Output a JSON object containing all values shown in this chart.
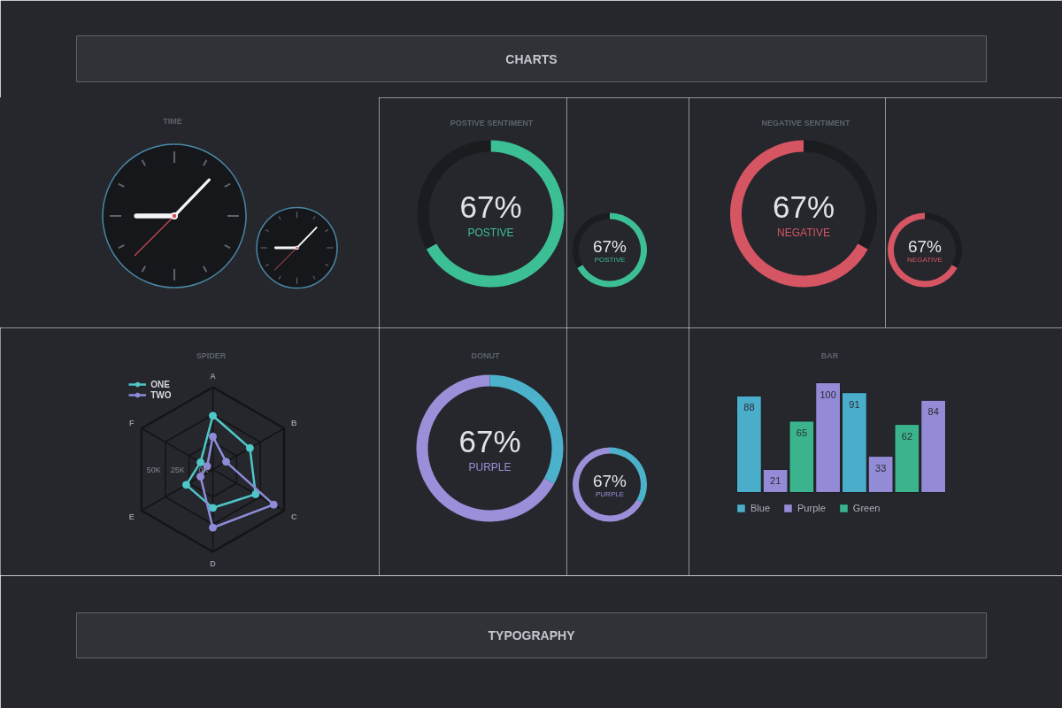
{
  "chart_data": [
    {
      "type": "other",
      "title": "CHARTS"
    },
    {
      "type": "other",
      "title": "TIME"
    },
    {
      "type": "donut",
      "title": "POSTIVE SENTIMENT",
      "categories": [
        "POSTIVE",
        null
      ],
      "values": [
        67,
        33
      ],
      "colors": [
        "#3cbf95",
        "#1b1c20"
      ],
      "value_labels": [
        "67%",
        null
      ]
    },
    {
      "type": "donut",
      "categories": [
        "POSTIVE",
        null
      ],
      "values": [
        67,
        33
      ],
      "colors": [
        "#3cbf95",
        "#1b1c20"
      ],
      "value_labels": [
        "67%",
        null
      ]
    },
    {
      "type": "donut",
      "title": "NEGATIVE SENTIMENT",
      "categories": [
        "NEGATIVE",
        null
      ],
      "values": [
        67,
        33
      ],
      "colors": [
        "#d65563",
        "#1b1c20"
      ],
      "value_labels": [
        "67%",
        null
      ]
    },
    {
      "type": "donut",
      "categories": [
        "NEGATIVE",
        null
      ],
      "values": [
        67,
        33
      ],
      "colors": [
        "#d65563",
        "#1b1c20"
      ],
      "value_labels": [
        "67%",
        null
      ]
    },
    {
      "type": "radar",
      "title": "SPIDER",
      "categories": [
        "A",
        "B",
        "C",
        "D",
        "E",
        "F"
      ],
      "series": [
        {
          "name": "ONE",
          "color": "#4fc7c9",
          "values": [
            49,
            39,
            45,
            35,
            28,
            13
          ]
        },
        {
          "name": "TWO",
          "color": "#8e8cd9",
          "values": [
            30,
            14,
            64,
            53,
            13,
            6
          ]
        }
      ],
      "ylim": [
        0,
        75
      ],
      "yticks": [
        {
          "value": 0,
          "label": "0K"
        },
        {
          "value": 25,
          "label": "25K"
        },
        {
          "value": 50,
          "label": "50K"
        }
      ],
      "grid": true,
      "marker": "circle",
      "legend": "top left"
    },
    {
      "type": "donut",
      "title": "DONUT",
      "categories": [
        "PURPLE",
        null
      ],
      "values": [
        67,
        33
      ],
      "colors": [
        "#9b8fd9",
        "#4cb2cc"
      ],
      "value_labels": [
        "67%",
        null
      ]
    },
    {
      "type": "donut",
      "categories": [
        "PURPLE",
        null
      ],
      "values": [
        67,
        33
      ],
      "colors": [
        "#9b8fd9",
        "#4cb2cc"
      ],
      "value_labels": [
        "67%",
        null
      ]
    },
    {
      "type": "bar",
      "title": "BAR",
      "categories": [
        null,
        null,
        null,
        null,
        null,
        null,
        null,
        null
      ],
      "stacked": true,
      "series": [
        {
          "name": "Blue",
          "color": "#4aaecb",
          "values": [
            88,
            null,
            null,
            null,
            91,
            null,
            null,
            null
          ]
        },
        {
          "name": "Purple",
          "color": "#948bd7",
          "values": [
            null,
            21,
            null,
            100,
            null,
            33,
            null,
            84
          ]
        },
        {
          "name": "Green",
          "color": "#3bb48e",
          "values": [
            null,
            null,
            65,
            null,
            null,
            null,
            62,
            null
          ]
        }
      ],
      "data_labels": true,
      "legend": "bottom"
    },
    {
      "type": "other",
      "title": "TYPOGRAPHY"
    }
  ]
}
